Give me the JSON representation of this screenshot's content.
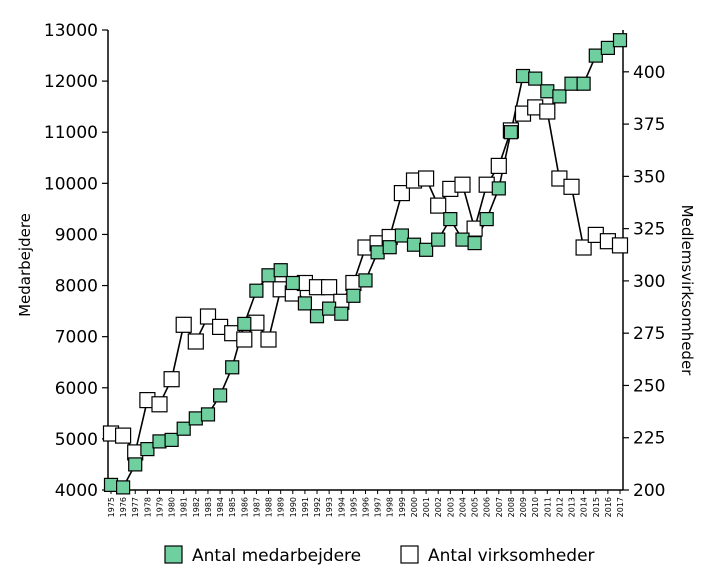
{
  "chart_data": {
    "type": "line",
    "title": "",
    "xlabel": "",
    "ylabel": "Medarbejdere",
    "y2label": "Medlemsvirksomheder",
    "ylim": [
      4000,
      13000
    ],
    "y2lim": [
      200,
      420
    ],
    "yticks": [
      4000,
      5000,
      6000,
      7000,
      8000,
      9000,
      10000,
      11000,
      12000,
      13000
    ],
    "y2ticks": [
      200,
      225,
      250,
      275,
      300,
      325,
      350,
      375,
      400
    ],
    "x": [
      "1975",
      "1976",
      "1977",
      "1978",
      "1979",
      "1980",
      "1981",
      "1982",
      "1983",
      "1984",
      "1985",
      "1986",
      "1987",
      "1988",
      "1989",
      "1990",
      "1991",
      "1992",
      "1993",
      "1994",
      "1995",
      "1996",
      "1997",
      "1998",
      "1999",
      "2000",
      "2001",
      "2002",
      "2003",
      "2004",
      "2005",
      "2006",
      "2007",
      "2008",
      "2009",
      "2010",
      "2011",
      "2012",
      "2013",
      "2014",
      "2015",
      "2016",
      "2017"
    ],
    "series": [
      {
        "name": "Antal medarbejdere",
        "axis": "left",
        "marker": "filled-square",
        "color": "#6fcf9f",
        "values": [
          4100,
          4050,
          4500,
          4800,
          4950,
          4980,
          5200,
          5400,
          5480,
          5850,
          6400,
          7250,
          7900,
          8200,
          8300,
          8050,
          7650,
          7400,
          7550,
          7450,
          7800,
          8100,
          8650,
          8750,
          8980,
          8800,
          8700,
          8900,
          9300,
          8900,
          8830,
          9300,
          9900,
          11000,
          12100,
          12050,
          11800,
          11700,
          11950,
          11950,
          12500,
          12650,
          12800
        ]
      },
      {
        "name": "Antal virksomheder",
        "axis": "right",
        "marker": "open-square",
        "color": "#ffffff",
        "values": [
          227,
          226,
          218,
          243,
          241,
          253,
          279,
          271,
          283,
          278,
          275,
          272,
          280,
          272,
          296,
          294,
          299,
          297,
          297,
          290,
          299,
          316,
          318,
          321,
          342,
          348,
          349,
          336,
          344,
          346,
          325,
          346,
          355,
          372,
          380,
          383,
          381,
          349,
          345,
          316,
          322,
          319,
          317
        ]
      }
    ],
    "legend_position": "bottom-center",
    "grid": false
  }
}
